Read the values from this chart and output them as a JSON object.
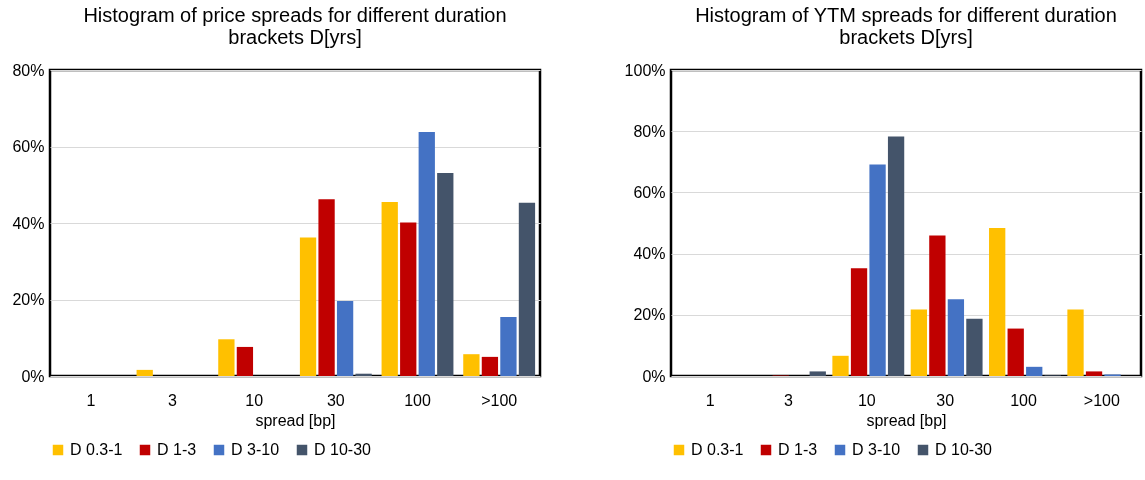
{
  "chart_data": [
    {
      "type": "bar",
      "title": "Histogram of price spreads for different duration brackets D[yrs]",
      "xlabel": "spread [bp]",
      "categories": [
        "1",
        "3",
        "10",
        "30",
        "100",
        ">100"
      ],
      "ylim": [
        0,
        80
      ],
      "yticks": [
        {
          "value": 0,
          "label": "0%"
        },
        {
          "value": 20,
          "label": "20%"
        },
        {
          "value": 40,
          "label": "40%"
        },
        {
          "value": 60,
          "label": "60%"
        },
        {
          "value": 80,
          "label": "80%"
        }
      ],
      "grid": "y",
      "legend": "bottom",
      "series": [
        {
          "name": "D 0.3-1",
          "color": "#ffc000",
          "values": [
            0,
            1.6,
            9.6,
            36.2,
            45.5,
            5.7
          ]
        },
        {
          "name": "D 1-3",
          "color": "#c00000",
          "values": [
            0,
            0,
            7.6,
            46.2,
            40.1,
            5
          ]
        },
        {
          "name": "D 3-10",
          "color": "#4472c4",
          "values": [
            0,
            0,
            0,
            19.6,
            63.8,
            15.4
          ]
        },
        {
          "name": "D 10-30",
          "color": "#44546a",
          "values": [
            0,
            0,
            0,
            0.6,
            53.1,
            45.3
          ]
        }
      ]
    },
    {
      "type": "bar",
      "title": "Histogram of YTM spreads for different duration brackets D[yrs]",
      "xlabel": "spread [bp]",
      "categories": [
        "1",
        "3",
        "10",
        "30",
        "100",
        ">100"
      ],
      "ylim": [
        0,
        100
      ],
      "yticks": [
        {
          "value": 0,
          "label": "0%"
        },
        {
          "value": 20,
          "label": "20%"
        },
        {
          "value": 40,
          "label": "40%"
        },
        {
          "value": 60,
          "label": "60%"
        },
        {
          "value": 80,
          "label": "80%"
        },
        {
          "value": 100,
          "label": "100%"
        }
      ],
      "grid": "y",
      "legend": "bottom",
      "series": [
        {
          "name": "D 0.3-1",
          "color": "#ffc000",
          "values": [
            0,
            0,
            6.6,
            21.7,
            48.4,
            21.7
          ]
        },
        {
          "name": "D 1-3",
          "color": "#c00000",
          "values": [
            0,
            0.2,
            35.2,
            45.9,
            15.5,
            1.5
          ]
        },
        {
          "name": "D 3-10",
          "color": "#4472c4",
          "values": [
            0,
            null,
            69.1,
            25.1,
            3,
            0.5
          ]
        },
        {
          "name": "D 10-30",
          "color": "#44546a",
          "values": [
            0,
            1.5,
            78.3,
            18.7,
            0.2,
            0
          ]
        }
      ]
    }
  ]
}
